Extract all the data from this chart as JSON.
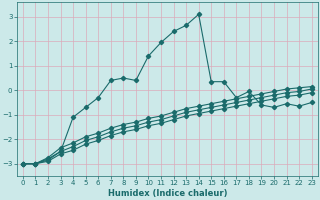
{
  "title": "",
  "xlabel": "Humidex (Indice chaleur)",
  "xlim": [
    -0.5,
    23.5
  ],
  "ylim": [
    -3.5,
    3.6
  ],
  "xticks": [
    0,
    1,
    2,
    3,
    4,
    5,
    6,
    7,
    8,
    9,
    10,
    11,
    12,
    13,
    14,
    15,
    16,
    17,
    18,
    19,
    20,
    21,
    22,
    23
  ],
  "yticks": [
    -3,
    -2,
    -1,
    0,
    1,
    2,
    3
  ],
  "bg_color": "#cce9e9",
  "grid_color": "#dbaabb",
  "line_color": "#1a6b6b",
  "line1_y": [
    -3.0,
    -3.0,
    -2.8,
    -2.5,
    -1.1,
    -0.7,
    -0.3,
    0.4,
    0.5,
    0.4,
    1.4,
    1.95,
    2.4,
    2.65,
    3.1,
    0.35,
    0.35,
    -0.3,
    -0.05,
    -0.6,
    -0.7,
    -0.55,
    -0.65,
    -0.5
  ],
  "line2_y": [
    -3.0,
    -3.0,
    -2.75,
    -2.35,
    -2.15,
    -1.9,
    -1.75,
    -1.55,
    -1.4,
    -1.3,
    -1.15,
    -1.05,
    -0.9,
    -0.75,
    -0.65,
    -0.55,
    -0.45,
    -0.35,
    -0.25,
    -0.15,
    -0.05,
    0.05,
    0.1,
    0.15
  ],
  "line3_y": [
    -3.0,
    -3.0,
    -2.85,
    -2.5,
    -2.3,
    -2.05,
    -1.9,
    -1.7,
    -1.55,
    -1.45,
    -1.3,
    -1.2,
    -1.05,
    -0.9,
    -0.8,
    -0.7,
    -0.6,
    -0.5,
    -0.4,
    -0.3,
    -0.2,
    -0.1,
    -0.05,
    0.05
  ],
  "line4_y": [
    -3.0,
    -3.0,
    -2.9,
    -2.6,
    -2.45,
    -2.2,
    -2.05,
    -1.85,
    -1.7,
    -1.6,
    -1.45,
    -1.35,
    -1.2,
    -1.05,
    -0.95,
    -0.85,
    -0.75,
    -0.65,
    -0.55,
    -0.45,
    -0.35,
    -0.25,
    -0.2,
    -0.1
  ],
  "marker": "D",
  "markersize": 2.2,
  "linewidth": 0.8,
  "tick_fontsize": 5.0,
  "xlabel_fontsize": 6.0
}
